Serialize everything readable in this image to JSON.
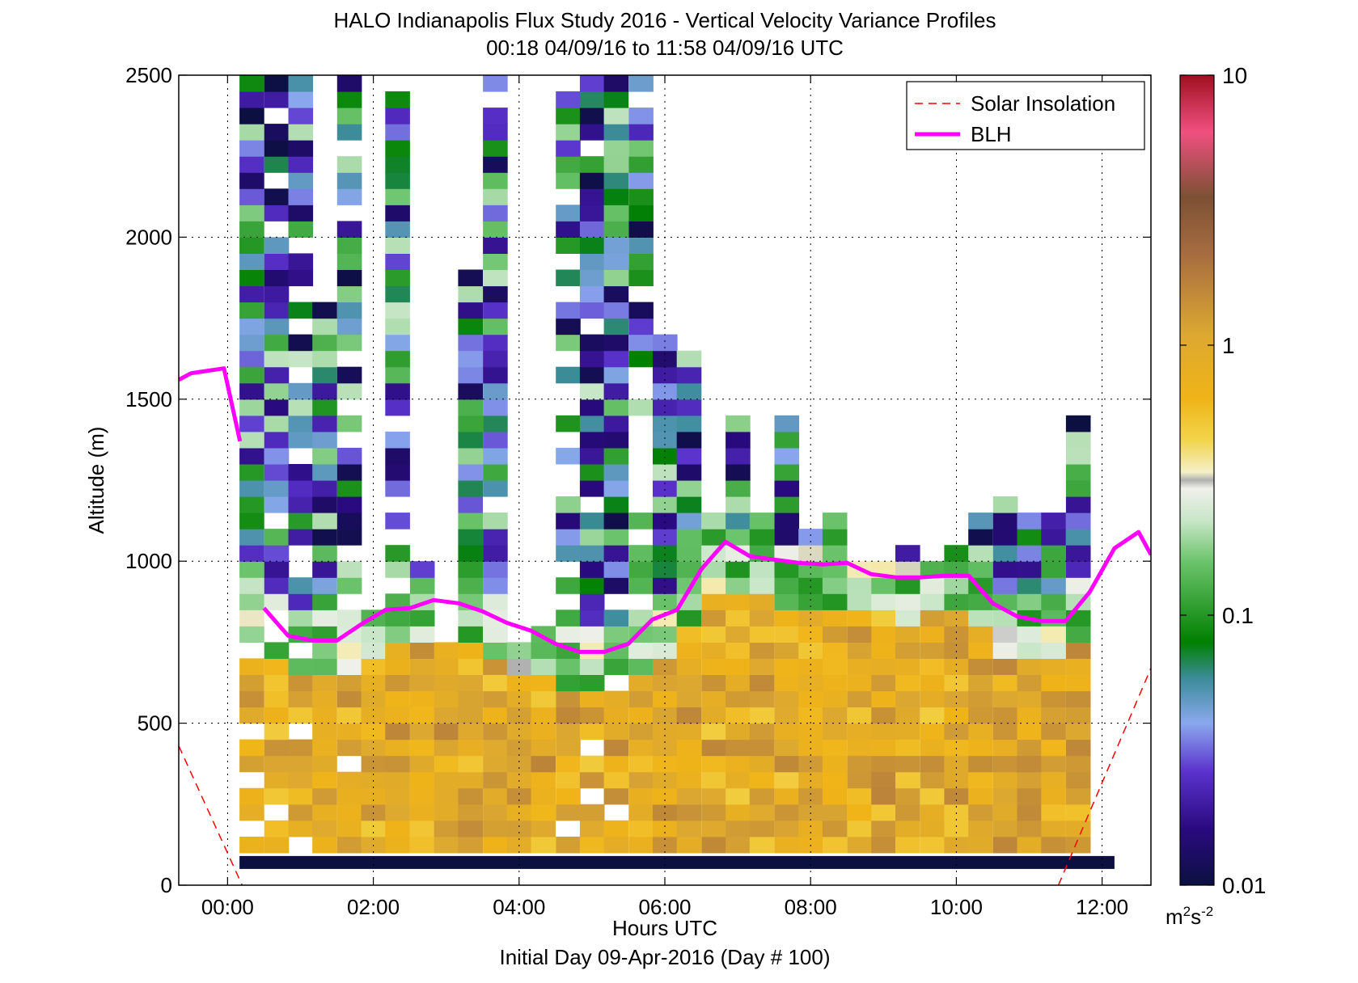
{
  "chart_data": {
    "type": "heatmap",
    "title": "HALO Indianapolis Flux Study 2016 - Vertical Velocity Variance Profiles",
    "subtitle": "00:18 04/09/16 to 11:58 04/09/16  UTC",
    "xlabel": "Hours UTC",
    "xlabel2": "Initial Day 09-Apr-2016 (Day # 100)",
    "ylabel": "Altitude (m)",
    "xlim": [
      -0.67,
      12.67
    ],
    "ylim": [
      0,
      2500
    ],
    "x_ticks": [
      0,
      2,
      4,
      6,
      8,
      10,
      12
    ],
    "x_tick_labels": [
      "00:00",
      "02:00",
      "04:00",
      "06:00",
      "08:00",
      "10:00",
      "12:00"
    ],
    "y_ticks": [
      0,
      500,
      1000,
      1500,
      2000,
      2500
    ],
    "y_tick_labels": [
      "0",
      "500",
      "1000",
      "1500",
      "2000",
      "2500"
    ],
    "grid": true,
    "legend_position": "top-right",
    "colorbar": {
      "scale": "log",
      "min": 0.01,
      "max": 10,
      "tick_values": [
        0.01,
        0.1,
        1,
        10
      ],
      "tick_labels": [
        "0.01",
        "0.1",
        "1",
        "10"
      ],
      "unit_base": "m",
      "unit_sup1": "2",
      "unit_mid": "s",
      "unit_sup2": "-2"
    },
    "bin_width_hours": 0.333,
    "bin_height_m": 50,
    "columns_x": [
      0.33,
      0.67,
      1.0,
      1.33,
      1.67,
      2.0,
      2.33,
      2.67,
      3.0,
      3.33,
      3.67,
      4.0,
      4.33,
      4.67,
      5.0,
      5.33,
      5.67,
      6.0,
      6.33,
      6.67,
      7.0,
      7.33,
      7.67,
      8.0,
      8.33,
      8.67,
      9.0,
      9.33,
      9.67,
      10.0,
      10.33,
      10.67,
      11.0,
      11.33,
      11.67,
      12.0
    ],
    "column_top_m": [
      2500,
      2500,
      2500,
      1800,
      2500,
      850,
      2500,
      1000,
      750,
      1900,
      2500,
      750,
      800,
      2500,
      2500,
      2500,
      2500,
      1700,
      1650,
      1150,
      1450,
      1150,
      1450,
      1100,
      1150,
      1000,
      1000,
      1050,
      1000,
      1050,
      1150,
      1200,
      1150,
      1150,
      1450,
      0
    ],
    "surface_band_m": [
      50,
      90
    ],
    "series": [
      {
        "name": "Solar Insolation",
        "color": "#ff0000",
        "style": "dashed",
        "x": [
          -0.67,
          0.2,
          11.4,
          12.67
        ],
        "y": [
          430,
          0,
          0,
          670
        ]
      },
      {
        "name": "BLH",
        "color": "#ff00ff",
        "style": "solid",
        "segments": [
          {
            "x": [
              -0.67,
              -0.5,
              -0.2,
              -0.05,
              0.17
            ],
            "y": [
              1560,
              1580,
              1590,
              1595,
              1370
            ]
          },
          {
            "x": [
              0.5,
              0.83,
              1.17,
              1.5,
              1.83,
              2.17,
              2.5,
              2.83,
              3.17,
              3.5,
              3.83,
              4.17,
              4.5,
              4.83,
              5.17,
              5.5,
              5.83,
              6.17,
              6.5,
              6.83,
              7.17,
              7.5,
              7.83,
              8.17,
              8.5,
              8.83,
              9.17,
              9.5,
              9.83,
              10.17,
              10.5,
              10.83,
              11.17,
              11.5,
              11.83,
              12.17,
              12.5,
              12.67
            ],
            "y": [
              855,
              770,
              755,
              755,
              805,
              850,
              855,
              880,
              870,
              845,
              810,
              785,
              745,
              720,
              720,
              745,
              820,
              850,
              975,
              1060,
              1015,
              1005,
              995,
              990,
              995,
              960,
              950,
              950,
              955,
              955,
              870,
              830,
              815,
              815,
              905,
              1040,
              1090,
              1020
            ]
          }
        ]
      }
    ]
  }
}
